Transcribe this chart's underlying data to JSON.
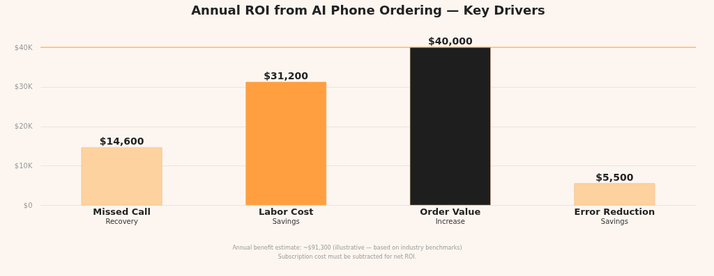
{
  "chart_data": {
    "type": "bar",
    "title": "Annual ROI from AI Phone Ordering — Key Drivers",
    "categories": [
      "Missed Call\nRecovery",
      "Labor Cost\nSavings",
      "Order Value\nIncrease",
      "Error Reduction\nSavings"
    ],
    "values": [
      14600,
      31200,
      40000,
      5500
    ],
    "colors": [
      "#fdd29f",
      "#ff9f3f",
      "#1e1e1e",
      "#fdd29f"
    ],
    "value_labels": [
      "$14,600",
      "$31,200",
      "$40,000",
      "$5,500"
    ],
    "ylim": [
      0,
      40000
    ],
    "yticks": [
      {
        "value": 0,
        "label": "$0"
      },
      {
        "value": 10000,
        "label": "$10K"
      },
      {
        "value": 20000,
        "label": "$20K"
      },
      {
        "value": 30000,
        "label": "$30K"
      },
      {
        "value": 40000,
        "label": "$40K"
      }
    ],
    "grid": "y",
    "ref_lines": [
      {
        "axis": "y",
        "value": 40000,
        "label": null,
        "color": "#ff9f3f"
      }
    ],
    "annotations": [
      "Annual benefit estimate: ~$91,300 (illustrative — based on industry benchmarks)",
      "Subscription cost must be subtracted for net ROI."
    ]
  }
}
